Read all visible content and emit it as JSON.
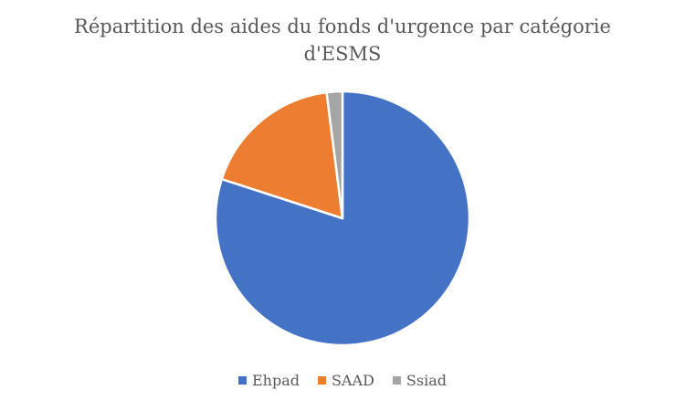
{
  "chart_data": {
    "type": "pie",
    "title_lines": [
      "Répartition des aides du fonds d'urgence par catégorie",
      "d'ESMS"
    ],
    "categories": [
      "Ehpad",
      "SAAD",
      "Ssiad"
    ],
    "values": [
      80,
      18,
      2
    ],
    "colors": [
      "#4472C4",
      "#ED7D31",
      "#A5A5A5"
    ],
    "legend_position": "bottom"
  }
}
